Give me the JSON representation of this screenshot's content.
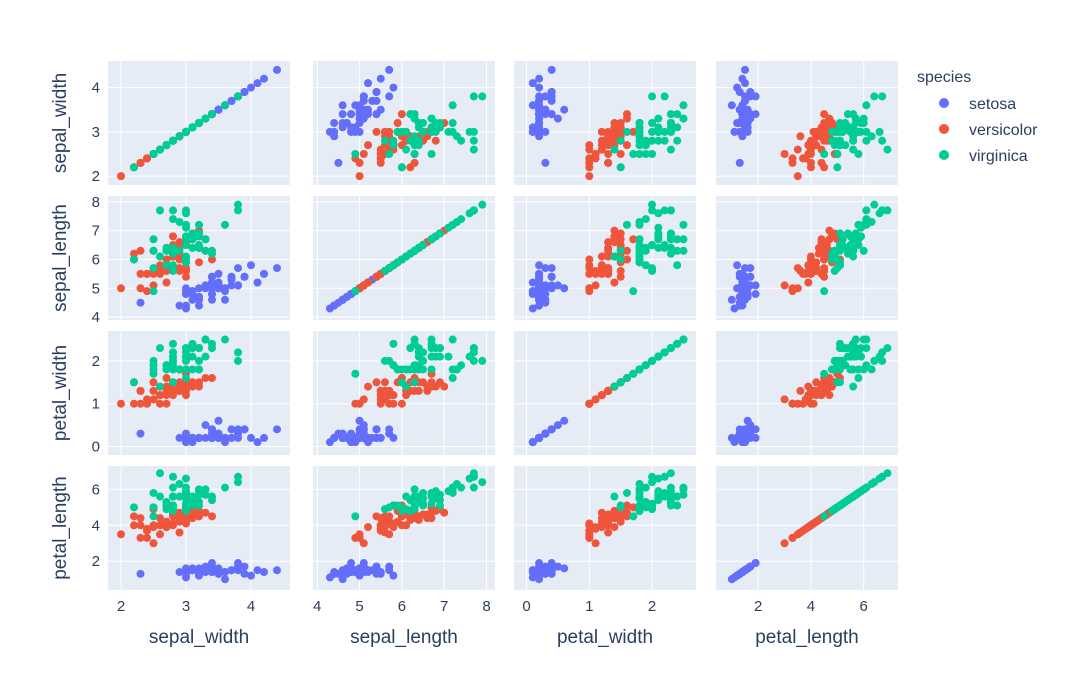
{
  "chart_data": {
    "type": "scatter_matrix",
    "title": "",
    "dimensions": [
      "sepal_width",
      "sepal_length",
      "petal_width",
      "petal_length"
    ],
    "axis_ranges": {
      "sepal_width": [
        1.8,
        4.6
      ],
      "sepal_length": [
        3.9,
        8.2
      ],
      "petal_width": [
        -0.2,
        2.7
      ],
      "petal_length": [
        0.4,
        7.3
      ]
    },
    "axis_ticks": {
      "sepal_width": [
        2,
        3,
        4
      ],
      "sepal_length": [
        4,
        5,
        6,
        7,
        8
      ],
      "petal_width": [
        0,
        1,
        2
      ],
      "petal_length": [
        2,
        4,
        6
      ]
    },
    "legend": {
      "title": "species",
      "position": "top-right"
    },
    "grid": true,
    "series": [
      {
        "name": "setosa",
        "color": "#636efa",
        "points": [
          [
            3.5,
            5.1,
            0.2,
            1.4
          ],
          [
            3.0,
            4.9,
            0.2,
            1.4
          ],
          [
            3.2,
            4.7,
            0.2,
            1.3
          ],
          [
            3.1,
            4.6,
            0.2,
            1.5
          ],
          [
            3.6,
            5.0,
            0.2,
            1.4
          ],
          [
            3.9,
            5.4,
            0.4,
            1.7
          ],
          [
            3.4,
            4.6,
            0.3,
            1.4
          ],
          [
            3.4,
            5.0,
            0.2,
            1.5
          ],
          [
            2.9,
            4.4,
            0.2,
            1.4
          ],
          [
            3.1,
            4.9,
            0.1,
            1.5
          ],
          [
            3.7,
            5.4,
            0.2,
            1.5
          ],
          [
            3.4,
            4.8,
            0.2,
            1.6
          ],
          [
            3.0,
            4.8,
            0.1,
            1.4
          ],
          [
            3.0,
            4.3,
            0.1,
            1.1
          ],
          [
            4.0,
            5.8,
            0.2,
            1.2
          ],
          [
            4.4,
            5.7,
            0.4,
            1.5
          ],
          [
            3.9,
            5.4,
            0.4,
            1.3
          ],
          [
            3.5,
            5.1,
            0.3,
            1.4
          ],
          [
            3.8,
            5.7,
            0.3,
            1.7
          ],
          [
            3.8,
            5.1,
            0.3,
            1.5
          ],
          [
            3.4,
            5.4,
            0.2,
            1.7
          ],
          [
            3.7,
            5.1,
            0.4,
            1.5
          ],
          [
            3.6,
            4.6,
            0.2,
            1.0
          ],
          [
            3.3,
            5.1,
            0.5,
            1.7
          ],
          [
            3.4,
            4.8,
            0.2,
            1.9
          ],
          [
            3.0,
            5.0,
            0.2,
            1.6
          ],
          [
            3.4,
            5.0,
            0.4,
            1.6
          ],
          [
            3.5,
            5.2,
            0.2,
            1.5
          ],
          [
            3.4,
            5.2,
            0.2,
            1.4
          ],
          [
            3.2,
            4.7,
            0.2,
            1.6
          ],
          [
            3.1,
            4.8,
            0.2,
            1.6
          ],
          [
            3.4,
            5.4,
            0.4,
            1.5
          ],
          [
            4.1,
            5.2,
            0.1,
            1.5
          ],
          [
            4.2,
            5.5,
            0.2,
            1.4
          ],
          [
            3.1,
            4.9,
            0.2,
            1.5
          ],
          [
            3.2,
            5.0,
            0.2,
            1.2
          ],
          [
            3.5,
            5.5,
            0.2,
            1.3
          ],
          [
            3.6,
            4.9,
            0.1,
            1.4
          ],
          [
            3.0,
            4.4,
            0.2,
            1.3
          ],
          [
            3.4,
            5.1,
            0.2,
            1.5
          ],
          [
            3.5,
            5.0,
            0.3,
            1.3
          ],
          [
            2.3,
            4.5,
            0.3,
            1.3
          ],
          [
            3.2,
            4.4,
            0.2,
            1.3
          ],
          [
            3.5,
            5.0,
            0.6,
            1.6
          ],
          [
            3.8,
            5.1,
            0.4,
            1.9
          ],
          [
            3.0,
            4.8,
            0.3,
            1.4
          ],
          [
            3.8,
            5.1,
            0.2,
            1.6
          ],
          [
            3.2,
            4.6,
            0.2,
            1.4
          ],
          [
            3.7,
            5.3,
            0.2,
            1.5
          ],
          [
            3.3,
            5.0,
            0.2,
            1.4
          ]
        ]
      },
      {
        "name": "versicolor",
        "color": "#ef553b",
        "points": [
          [
            3.2,
            7.0,
            1.4,
            4.7
          ],
          [
            3.2,
            6.4,
            1.5,
            4.5
          ],
          [
            3.1,
            6.9,
            1.5,
            4.9
          ],
          [
            2.3,
            5.5,
            1.3,
            4.0
          ],
          [
            2.8,
            6.5,
            1.5,
            4.6
          ],
          [
            2.8,
            5.7,
            1.3,
            4.5
          ],
          [
            3.3,
            6.3,
            1.6,
            4.7
          ],
          [
            2.4,
            4.9,
            1.0,
            3.3
          ],
          [
            2.9,
            6.6,
            1.3,
            4.6
          ],
          [
            2.7,
            5.2,
            1.4,
            3.9
          ],
          [
            2.0,
            5.0,
            1.0,
            3.5
          ],
          [
            3.0,
            5.9,
            1.5,
            4.2
          ],
          [
            2.2,
            6.0,
            1.0,
            4.0
          ],
          [
            2.9,
            6.1,
            1.4,
            4.7
          ],
          [
            2.9,
            5.6,
            1.3,
            3.6
          ],
          [
            3.1,
            6.7,
            1.4,
            4.4
          ],
          [
            3.0,
            5.6,
            1.5,
            4.5
          ],
          [
            2.7,
            5.8,
            1.0,
            4.1
          ],
          [
            2.2,
            6.2,
            1.5,
            4.5
          ],
          [
            2.5,
            5.6,
            1.1,
            3.9
          ],
          [
            3.2,
            5.9,
            1.8,
            4.8
          ],
          [
            2.8,
            6.1,
            1.3,
            4.0
          ],
          [
            2.5,
            6.3,
            1.5,
            4.9
          ],
          [
            2.8,
            6.1,
            1.2,
            4.7
          ],
          [
            2.9,
            6.4,
            1.3,
            4.3
          ],
          [
            3.0,
            6.6,
            1.4,
            4.4
          ],
          [
            2.8,
            6.8,
            1.4,
            4.8
          ],
          [
            3.0,
            6.7,
            1.7,
            5.0
          ],
          [
            2.9,
            6.0,
            1.5,
            4.5
          ],
          [
            2.6,
            5.7,
            1.0,
            3.5
          ],
          [
            2.4,
            5.5,
            1.1,
            3.8
          ],
          [
            2.4,
            5.5,
            1.0,
            3.7
          ],
          [
            2.7,
            5.8,
            1.2,
            3.9
          ],
          [
            2.7,
            6.0,
            1.6,
            5.1
          ],
          [
            3.0,
            5.4,
            1.5,
            4.5
          ],
          [
            3.4,
            6.0,
            1.6,
            4.5
          ],
          [
            3.1,
            6.7,
            1.5,
            4.7
          ],
          [
            2.3,
            6.3,
            1.3,
            4.4
          ],
          [
            3.0,
            5.6,
            1.3,
            4.1
          ],
          [
            2.5,
            5.5,
            1.3,
            4.0
          ],
          [
            2.6,
            5.5,
            1.2,
            4.4
          ],
          [
            3.0,
            6.1,
            1.4,
            4.6
          ],
          [
            2.6,
            5.8,
            1.2,
            4.0
          ],
          [
            2.3,
            5.0,
            1.0,
            3.3
          ],
          [
            2.7,
            5.6,
            1.3,
            4.2
          ],
          [
            3.0,
            5.7,
            1.2,
            4.2
          ],
          [
            2.9,
            5.7,
            1.3,
            4.2
          ],
          [
            2.9,
            6.2,
            1.3,
            4.3
          ],
          [
            2.5,
            5.1,
            1.1,
            3.0
          ],
          [
            2.8,
            5.7,
            1.3,
            4.1
          ]
        ]
      },
      {
        "name": "virginica",
        "color": "#00cc96",
        "points": [
          [
            3.3,
            6.3,
            2.5,
            6.0
          ],
          [
            2.7,
            5.8,
            1.9,
            5.1
          ],
          [
            3.0,
            7.1,
            2.1,
            5.9
          ],
          [
            2.9,
            6.3,
            1.8,
            5.6
          ],
          [
            3.0,
            6.5,
            2.2,
            5.8
          ],
          [
            3.0,
            7.6,
            2.1,
            6.6
          ],
          [
            2.5,
            4.9,
            1.7,
            4.5
          ],
          [
            2.9,
            7.3,
            1.8,
            6.3
          ],
          [
            2.5,
            6.7,
            1.8,
            5.8
          ],
          [
            3.6,
            7.2,
            2.5,
            6.1
          ],
          [
            3.2,
            6.5,
            2.0,
            5.1
          ],
          [
            2.7,
            6.4,
            1.9,
            5.3
          ],
          [
            3.0,
            6.8,
            2.1,
            5.5
          ],
          [
            2.5,
            5.7,
            2.0,
            5.0
          ],
          [
            2.8,
            5.8,
            2.4,
            5.1
          ],
          [
            3.2,
            6.4,
            2.3,
            5.3
          ],
          [
            3.0,
            6.5,
            1.8,
            5.5
          ],
          [
            3.8,
            7.7,
            2.2,
            6.7
          ],
          [
            2.6,
            7.7,
            2.3,
            6.9
          ],
          [
            2.2,
            6.0,
            1.5,
            5.0
          ],
          [
            3.2,
            6.9,
            2.3,
            5.7
          ],
          [
            2.8,
            5.6,
            2.0,
            4.9
          ],
          [
            2.8,
            7.7,
            2.0,
            6.7
          ],
          [
            2.7,
            6.3,
            1.8,
            4.9
          ],
          [
            3.3,
            6.7,
            2.1,
            5.7
          ],
          [
            3.2,
            7.2,
            1.8,
            6.0
          ],
          [
            2.8,
            6.2,
            1.8,
            4.8
          ],
          [
            3.0,
            6.1,
            1.8,
            4.9
          ],
          [
            2.8,
            6.4,
            2.1,
            5.6
          ],
          [
            3.0,
            7.2,
            1.6,
            5.8
          ],
          [
            2.8,
            7.4,
            1.9,
            6.1
          ],
          [
            3.8,
            7.9,
            2.0,
            6.4
          ],
          [
            2.8,
            6.4,
            2.2,
            5.6
          ],
          [
            2.8,
            6.3,
            1.5,
            5.1
          ],
          [
            2.6,
            6.1,
            1.4,
            5.6
          ],
          [
            3.0,
            7.7,
            2.3,
            6.1
          ],
          [
            3.4,
            6.3,
            2.4,
            5.6
          ],
          [
            3.1,
            6.4,
            1.8,
            5.5
          ],
          [
            3.0,
            6.0,
            1.8,
            4.8
          ],
          [
            3.1,
            6.9,
            2.1,
            5.4
          ],
          [
            3.1,
            6.7,
            2.4,
            5.6
          ],
          [
            3.1,
            6.9,
            2.3,
            5.1
          ],
          [
            2.7,
            5.8,
            1.9,
            5.1
          ],
          [
            3.2,
            6.8,
            2.3,
            5.9
          ],
          [
            3.3,
            6.7,
            2.5,
            5.7
          ],
          [
            3.0,
            6.7,
            2.3,
            5.2
          ],
          [
            2.5,
            6.3,
            1.9,
            5.0
          ],
          [
            3.0,
            6.5,
            2.0,
            5.2
          ],
          [
            3.4,
            6.2,
            2.3,
            5.4
          ],
          [
            3.0,
            5.9,
            1.8,
            5.1
          ]
        ]
      }
    ]
  }
}
